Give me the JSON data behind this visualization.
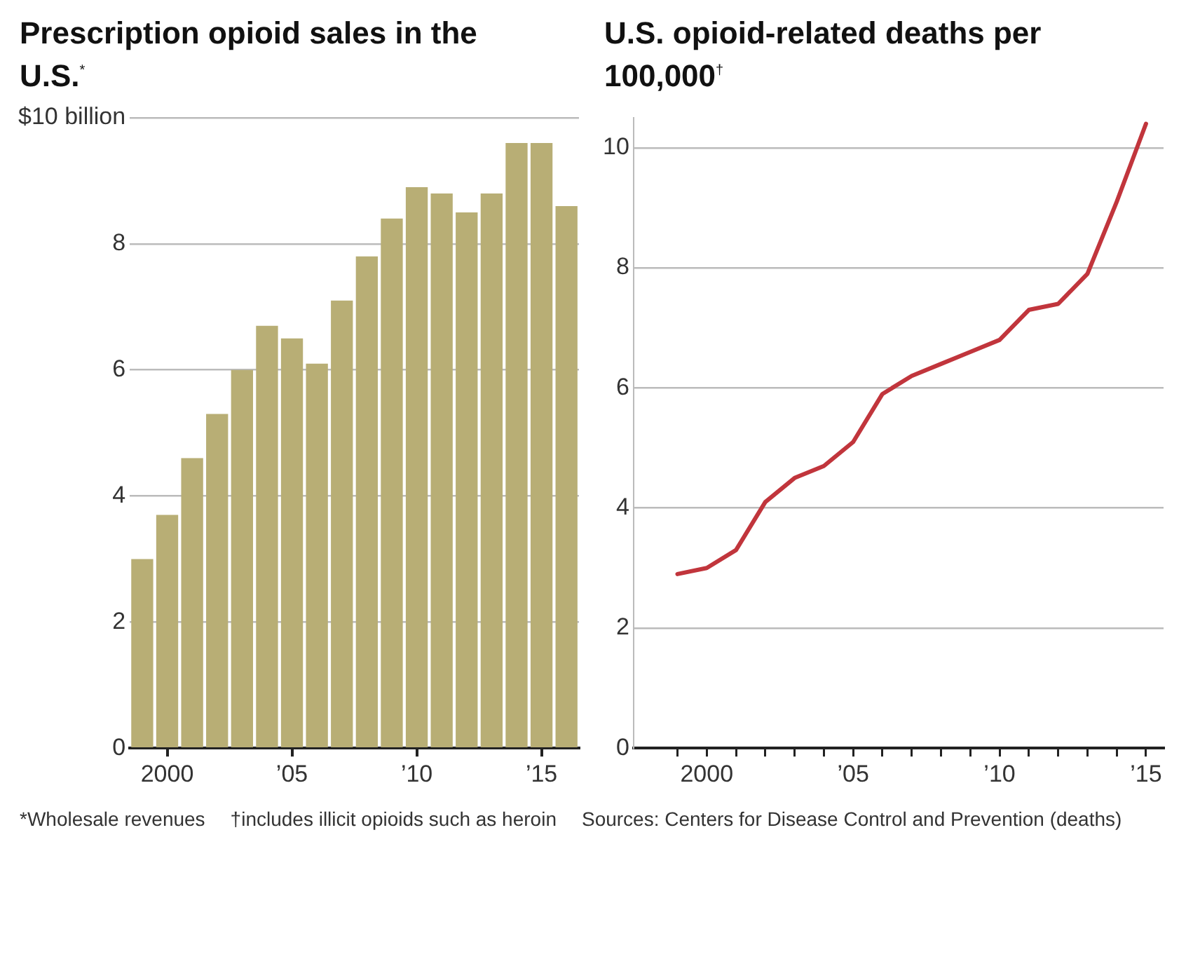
{
  "chart_data": [
    {
      "type": "bar",
      "title": "Prescription opioid sales in the U.S.$^{*}$",
      "categories": [
        null,
        "2000",
        null,
        null,
        null,
        null,
        "’05",
        null,
        null,
        null,
        null,
        "’10",
        null,
        null,
        null,
        null,
        "’15",
        null
      ],
      "values": [
        3.0,
        3.7,
        4.6,
        5.3,
        6.0,
        6.7,
        6.5,
        6.1,
        7.1,
        7.8,
        8.4,
        8.9,
        8.8,
        8.5,
        8.8,
        9.6,
        9.6,
        8.6
      ],
      "color": "#b8ae75",
      "ylim": [
        0,
        10
      ],
      "yticks": [
        0,
        2,
        4,
        6,
        8,
        {
          "value": 10,
          "label": "$10 billion"
        }
      ],
      "grid": "y",
      "annotations": [
        "*Wholesale revenues"
      ]
    },
    {
      "type": "line",
      "title": "U.S. opioid-related deaths per 100,000$^{†}$",
      "x": [
        1999,
        2000,
        2001,
        2002,
        2003,
        2004,
        2005,
        2006,
        2007,
        2008,
        2009,
        2010,
        2011,
        2012,
        2013,
        2014,
        2015
      ],
      "values": [
        2.9,
        3.0,
        3.3,
        4.1,
        4.5,
        4.7,
        5.1,
        5.9,
        6.2,
        6.4,
        6.6,
        6.8,
        7.3,
        7.4,
        7.9,
        9.1,
        10.4
      ],
      "color": "#c1353c",
      "xlim": [
        1997.5,
        2015.6
      ],
      "ylim": [
        0,
        10.5
      ],
      "xticks": [
        {
          "value": 1999,
          "label": null
        },
        {
          "value": 2000,
          "label": "2000"
        },
        {
          "value": 2001,
          "label": null
        },
        {
          "value": 2002,
          "label": null
        },
        {
          "value": 2003,
          "label": null
        },
        {
          "value": 2004,
          "label": null
        },
        {
          "value": 2005,
          "label": "’05"
        },
        {
          "value": 2006,
          "label": null
        },
        {
          "value": 2007,
          "label": null
        },
        {
          "value": 2008,
          "label": null
        },
        {
          "value": 2009,
          "label": null
        },
        {
          "value": 2010,
          "label": "’10"
        },
        {
          "value": 2011,
          "label": null
        },
        {
          "value": 2012,
          "label": null
        },
        {
          "value": 2013,
          "label": null
        },
        {
          "value": 2014,
          "label": null
        },
        {
          "value": 2015,
          "label": "’15"
        }
      ],
      "yticks": [
        0,
        2,
        4,
        6,
        8,
        10
      ],
      "grid": "y",
      "marker": "none",
      "line_style": "solid",
      "annotations": [
        "†includes illicit opioids such as heroin",
        "Sources: Centers for Disease Control and Prevention (deaths)"
      ]
    }
  ]
}
